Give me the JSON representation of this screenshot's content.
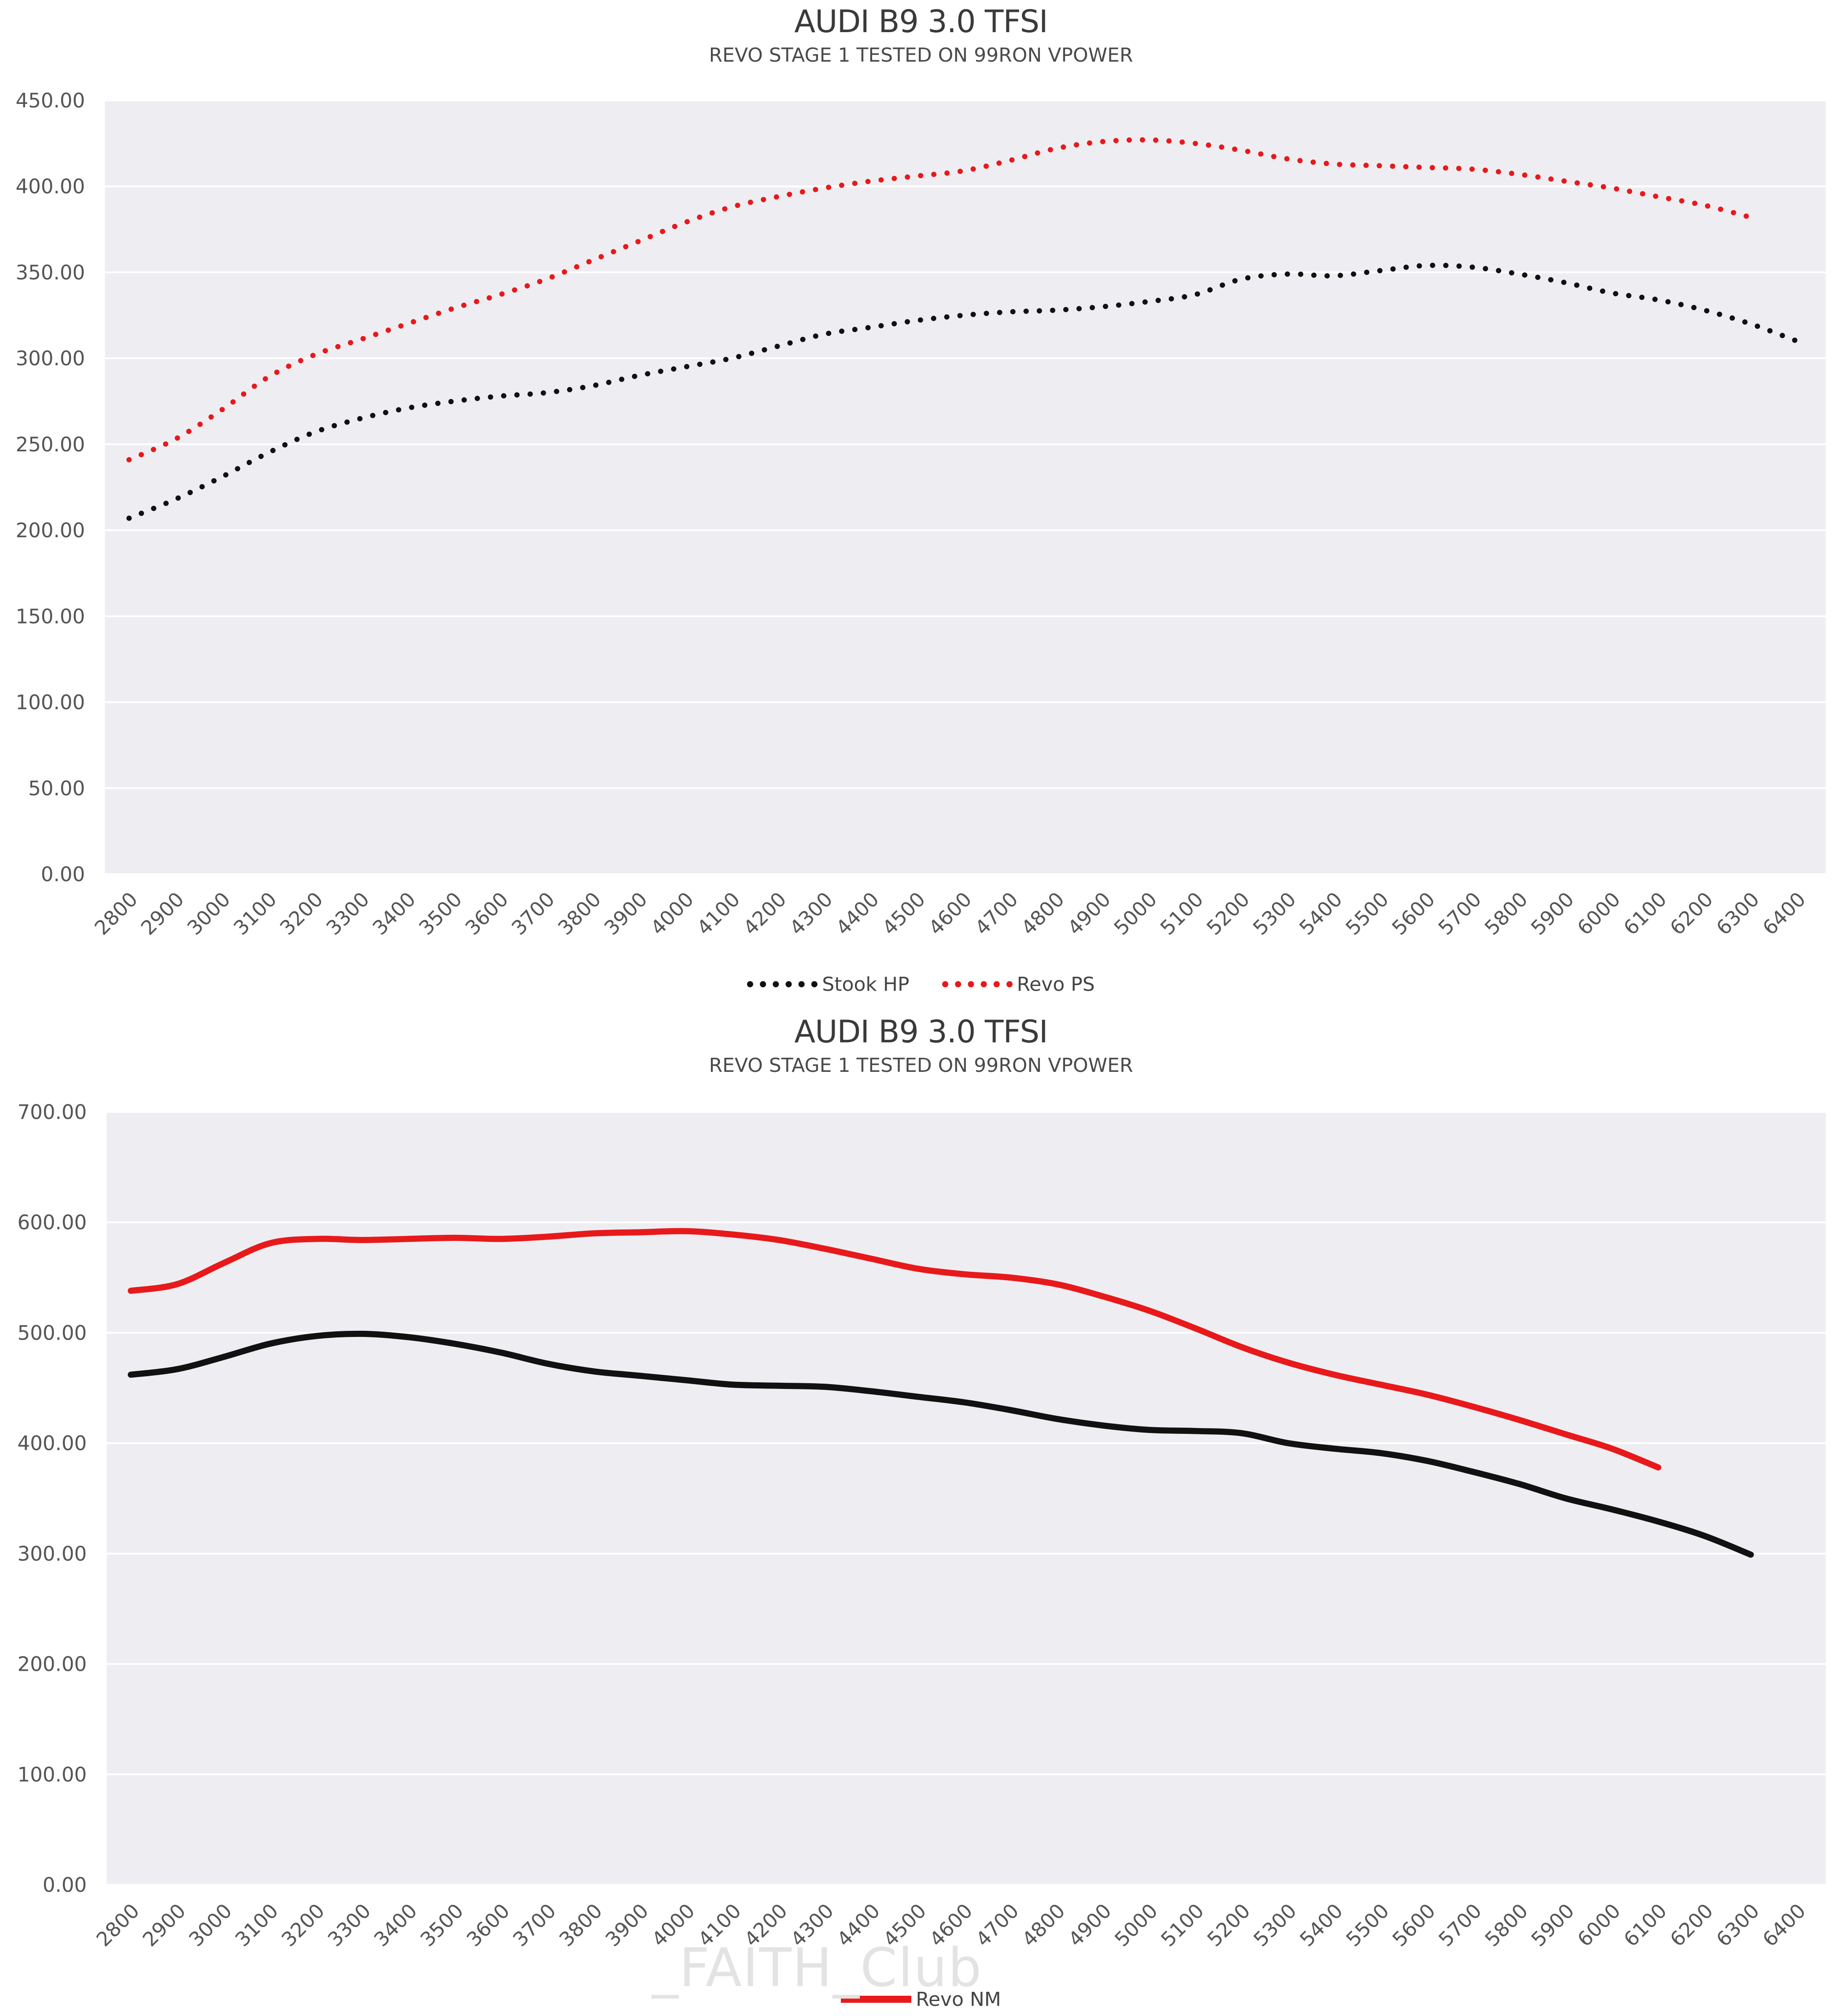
{
  "charts_meta": {
    "chart1": {
      "title": "AUDI B9 3.0 TFSI",
      "subtitle": "REVO STAGE 1 TESTED ON 99RON VPOWER",
      "legend": [
        "Stook HP",
        "Revo PS"
      ]
    },
    "chart2": {
      "title": "AUDI B9 3.0 TFSI",
      "subtitle": "REVO STAGE 1 TESTED ON 99RON VPOWER",
      "legend": [
        "Revo NM"
      ]
    },
    "watermark": "_FAITH_Club",
    "colors": {
      "black_series": "#111111",
      "red_series": "#e8191b",
      "plot_bg": "#eeeef2",
      "grid": "#ffffff"
    }
  },
  "chart_data": [
    {
      "type": "line",
      "title": "AUDI B9 3.0 TFSI",
      "subtitle": "REVO STAGE 1 TESTED ON 99RON VPOWER",
      "xlabel": "",
      "ylabel": "",
      "x": [
        2800,
        2900,
        3000,
        3100,
        3200,
        3300,
        3400,
        3500,
        3600,
        3700,
        3800,
        3900,
        4000,
        4100,
        4200,
        4300,
        4400,
        4500,
        4600,
        4700,
        4800,
        4900,
        5000,
        5100,
        5200,
        5300,
        5400,
        5500,
        5600,
        5700,
        5800,
        5900,
        6000,
        6100,
        6200,
        6300,
        6400
      ],
      "ylim": [
        0,
        450
      ],
      "yticks": [
        "0.00",
        "50.00",
        "100.00",
        "150.00",
        "200.00",
        "250.00",
        "300.00",
        "350.00",
        "400.00",
        "450.00"
      ],
      "grid": true,
      "legend_position": "bottom",
      "series": [
        {
          "name": "Stook HP",
          "style": "dotted",
          "values": [
            207,
            218,
            231,
            245,
            257,
            265,
            271,
            275,
            278,
            280,
            284,
            290,
            295,
            300,
            307,
            314,
            318,
            322,
            325,
            327,
            328,
            330,
            333,
            337,
            346,
            349,
            348,
            351,
            354,
            353,
            349,
            344,
            338,
            334,
            328,
            320,
            310
          ]
        },
        {
          "name": "Revo PS",
          "style": "dotted",
          "values": [
            241,
            253,
            270,
            289,
            302,
            311,
            320,
            329,
            337,
            346,
            357,
            368,
            379,
            388,
            394,
            399,
            403,
            406,
            409,
            415,
            422,
            426,
            427,
            425,
            421,
            416,
            413,
            412,
            411,
            410,
            407,
            403,
            399,
            394,
            389,
            382,
            null
          ]
        }
      ]
    },
    {
      "type": "line",
      "title": "AUDI B9 3.0 TFSI",
      "subtitle": "REVO STAGE 1 TESTED ON 99RON VPOWER",
      "xlabel": "",
      "ylabel": "",
      "x": [
        2800,
        2900,
        3000,
        3100,
        3200,
        3300,
        3400,
        3500,
        3600,
        3700,
        3800,
        3900,
        4000,
        4100,
        4200,
        4300,
        4400,
        4500,
        4600,
        4700,
        4800,
        4900,
        5000,
        5100,
        5200,
        5300,
        5400,
        5500,
        5600,
        5700,
        5800,
        5900,
        6000,
        6100,
        6200,
        6300,
        6400
      ],
      "ylim": [
        0,
        700
      ],
      "yticks": [
        "0.00",
        "100.00",
        "200.00",
        "300.00",
        "400.00",
        "500.00",
        "600.00",
        "700.00"
      ],
      "grid": true,
      "legend_position": "bottom",
      "series": [
        {
          "name": "",
          "style": "solid",
          "values": [
            462,
            467,
            478,
            490,
            497,
            499,
            496,
            490,
            482,
            472,
            465,
            461,
            457,
            453,
            452,
            451,
            447,
            442,
            437,
            430,
            422,
            416,
            412,
            411,
            409,
            400,
            395,
            391,
            384,
            374,
            363,
            350,
            340,
            329,
            316,
            299,
            null
          ]
        },
        {
          "name": "Revo NM",
          "style": "solid",
          "values": [
            538,
            544,
            563,
            581,
            585,
            584,
            585,
            586,
            585,
            587,
            590,
            591,
            592,
            589,
            584,
            576,
            567,
            558,
            553,
            550,
            544,
            533,
            520,
            504,
            487,
            473,
            462,
            453,
            444,
            433,
            421,
            408,
            395,
            378,
            null,
            null,
            null
          ]
        }
      ]
    }
  ]
}
